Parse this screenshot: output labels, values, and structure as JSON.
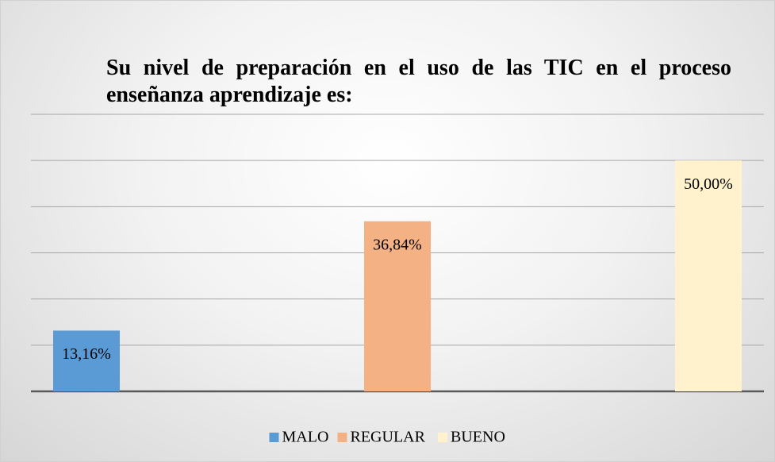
{
  "chart_data": {
    "type": "bar",
    "title": "Su nivel de preparación en el uso de las TIC en el proceso enseñanza aprendizaje es:",
    "series": [
      {
        "name": "MALO",
        "color": "#5b9bd5",
        "values": [
          13.16
        ],
        "value_labels": [
          "13,16%"
        ]
      },
      {
        "name": "REGULAR",
        "color": "#f4b183",
        "values": [
          36.84
        ],
        "value_labels": [
          "36,84%"
        ]
      },
      {
        "name": "BUENO",
        "color": "#fff2cc",
        "values": [
          50
        ],
        "value_labels": [
          "50,00%"
        ]
      }
    ],
    "ylim": [
      0,
      60
    ],
    "yticks": [
      0,
      10,
      20,
      30,
      40,
      50,
      60
    ],
    "grid": true,
    "legend": "bottom"
  }
}
